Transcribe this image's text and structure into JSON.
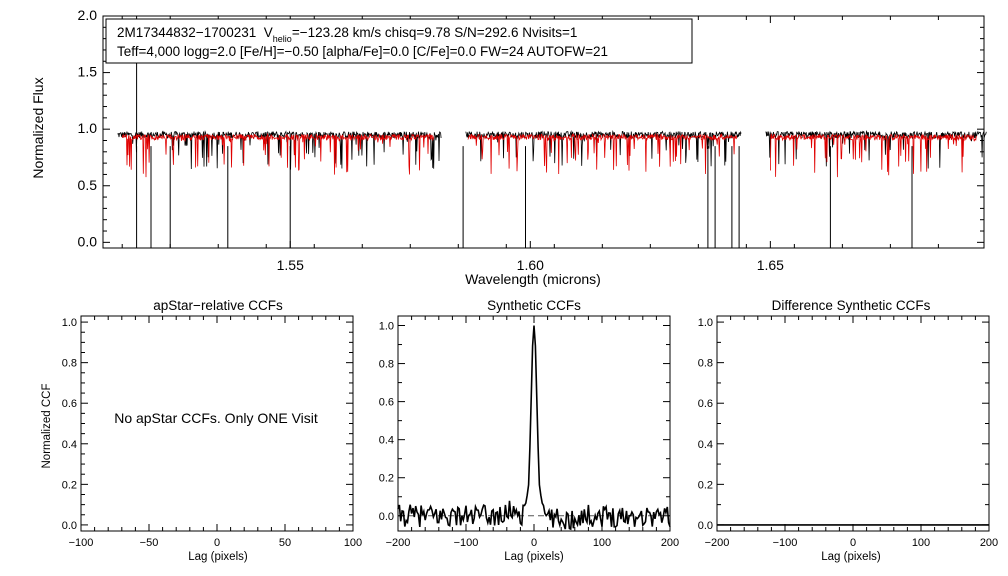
{
  "colors": {
    "observed": "#000000",
    "model": "#e00000",
    "axis": "#000000",
    "zero_line": "#555555"
  },
  "chart_data": [
    {
      "id": "spectrum",
      "type": "line",
      "title": "",
      "xlabel": "Wavelength (microns)",
      "ylabel": "Normalized Flux",
      "xlim": [
        1.511,
        1.6945
      ],
      "ylim": [
        -0.05,
        2.0
      ],
      "xticks": [
        {
          "value": 1.55,
          "label": "1.55"
        },
        {
          "value": 1.6,
          "label": "1.60"
        },
        {
          "value": 1.65,
          "label": "1.65"
        }
      ],
      "yticks": [
        {
          "value": 0.0,
          "label": "0.0"
        },
        {
          "value": 0.5,
          "label": "0.5"
        },
        {
          "value": 1.0,
          "label": "1.0"
        },
        {
          "value": 1.5,
          "label": "1.5"
        },
        {
          "value": 2.0,
          "label": "2.0"
        }
      ],
      "segments": [
        [
          1.514,
          1.5815
        ],
        [
          1.5865,
          1.644
        ],
        [
          1.649,
          1.695
        ]
      ],
      "model_segments": [
        [
          1.515,
          1.58
        ],
        [
          1.587,
          1.643
        ],
        [
          1.65,
          1.693
        ]
      ],
      "deep_lines": [
        1.518,
        1.521,
        1.525,
        1.537,
        1.55,
        1.586,
        1.599,
        1.637,
        1.6385,
        1.642,
        1.6435,
        1.6625,
        1.6795
      ],
      "spike": {
        "x": 1.518,
        "y": 2.0
      },
      "annotation": {
        "line1_object": "2M17344832−1700231",
        "line1_v": "V",
        "line1_v_sub": "helio",
        "line1_rest": "=−123.28 km/s  chisq=9.78  S/N=292.6  Nvisits=1",
        "line2": "Teff=4,000 logg=2.0 [Fe/H]=−0.50 [alpha/Fe]=0.0 [C/Fe]=0.0 FW=24 AUTOFW=21"
      }
    },
    {
      "id": "apstar-ccf",
      "type": "line",
      "title": "apStar−relative CCFs",
      "xlabel": "Lag (pixels)",
      "ylabel": "Normalized CCF",
      "xlim": [
        -100,
        100
      ],
      "ylim": [
        -0.03,
        1.03
      ],
      "xticks": [
        {
          "value": -100,
          "label": "−100"
        },
        {
          "value": -50,
          "label": "−50"
        },
        {
          "value": 0,
          "label": "0"
        },
        {
          "value": 50,
          "label": "50"
        },
        {
          "value": 100,
          "label": "100"
        }
      ],
      "yticks": [
        {
          "value": 0.0,
          "label": "0.0"
        },
        {
          "value": 0.2,
          "label": "0.2"
        },
        {
          "value": 0.4,
          "label": "0.4"
        },
        {
          "value": 0.6,
          "label": "0.6"
        },
        {
          "value": 0.8,
          "label": "0.8"
        },
        {
          "value": 1.0,
          "label": "1.0"
        }
      ],
      "message": "No apStar CCFs.  Only ONE Visit"
    },
    {
      "id": "synthetic-ccf",
      "type": "line",
      "title": "Synthetic CCFs",
      "xlabel": "Lag (pixels)",
      "ylabel": "",
      "xlim": [
        -200,
        200
      ],
      "ylim": [
        -0.08,
        1.05
      ],
      "xticks": [
        {
          "value": -200,
          "label": "−200"
        },
        {
          "value": -100,
          "label": "−100"
        },
        {
          "value": 0,
          "label": "0"
        },
        {
          "value": 100,
          "label": "100"
        },
        {
          "value": 200,
          "label": "200"
        }
      ],
      "yticks": [
        {
          "value": 0.0,
          "label": "0.0"
        },
        {
          "value": 0.2,
          "label": "0.2"
        },
        {
          "value": 0.4,
          "label": "0.4"
        },
        {
          "value": 0.6,
          "label": "0.6"
        },
        {
          "value": 0.8,
          "label": "0.8"
        },
        {
          "value": 1.0,
          "label": "1.0"
        }
      ],
      "peak": {
        "x": 0,
        "y": 1.0
      },
      "zero_line": 0.0,
      "baseline_min": -0.07,
      "baseline_max": 0.06
    },
    {
      "id": "difference-ccf",
      "type": "line",
      "title": "Difference Synthetic CCFs",
      "xlabel": "Lag (pixels)",
      "ylabel": "",
      "xlim": [
        -200,
        200
      ],
      "ylim": [
        -0.03,
        1.03
      ],
      "xticks": [
        {
          "value": -200,
          "label": "−200"
        },
        {
          "value": -100,
          "label": "−100"
        },
        {
          "value": 0,
          "label": "0"
        },
        {
          "value": 100,
          "label": "100"
        },
        {
          "value": 200,
          "label": "200"
        }
      ],
      "yticks": [
        {
          "value": 0.0,
          "label": "0.0"
        },
        {
          "value": 0.2,
          "label": "0.2"
        },
        {
          "value": 0.4,
          "label": "0.4"
        },
        {
          "value": 0.6,
          "label": "0.6"
        },
        {
          "value": 0.8,
          "label": "0.8"
        },
        {
          "value": 1.0,
          "label": "1.0"
        }
      ],
      "flat_value": 0.0
    }
  ]
}
